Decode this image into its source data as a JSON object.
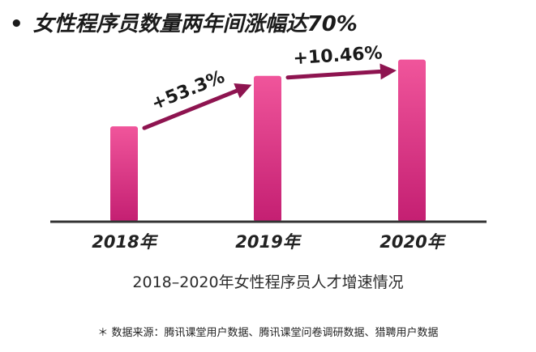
{
  "bullet": "•",
  "title": "女性程序员数量两年间涨幅达70%",
  "subtitle": "2018–2020年女性程序员人才增速情况",
  "source": "＊ 数据来源：腾讯课堂用户数据、腾讯课堂问卷调研数据、猎聘用户数据",
  "colors": {
    "bar_top": "#f0559b",
    "bar_bottom": "#c41f72",
    "arrow": "#8e1450",
    "axis": "#333333"
  },
  "chart_data": {
    "type": "bar",
    "categories": [
      "2018年",
      "2019年",
      "2020年"
    ],
    "values": [
      1.0,
      1.53,
      1.7
    ],
    "ylim": [
      0,
      1.85
    ],
    "growth_annotations": [
      {
        "from": "2018年",
        "to": "2019年",
        "label": "+53.3%"
      },
      {
        "from": "2019年",
        "to": "2020年",
        "label": "+10.46%"
      }
    ],
    "grid": false
  }
}
